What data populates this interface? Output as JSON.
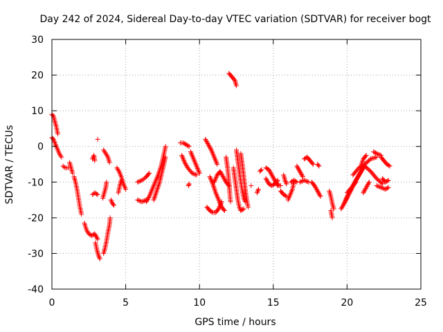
{
  "chart_data": {
    "type": "scatter",
    "title": "Day 242 of 2024, Sidereal Day-to-day VTEC variation (SDTVAR) for receiver bogt",
    "xlabel": "GPS time / hours",
    "ylabel": "SDTVAR / TECUs",
    "xlim": [
      0,
      25
    ],
    "ylim": [
      -40,
      30
    ],
    "xticks": [
      0,
      5,
      10,
      15,
      20,
      25
    ],
    "yticks": [
      -40,
      -30,
      -20,
      -10,
      0,
      10,
      20,
      30
    ],
    "grid": true,
    "marker": "+",
    "color": "#ff0000",
    "segments": [
      {
        "points": [
          [
            0.0,
            9.0
          ],
          [
            0.1,
            8.5
          ],
          [
            0.2,
            7.0
          ],
          [
            0.3,
            5.5
          ],
          [
            0.4,
            3.5
          ]
        ]
      },
      {
        "points": [
          [
            0.0,
            2.5
          ],
          [
            0.1,
            2.0
          ],
          [
            0.2,
            1.0
          ],
          [
            0.35,
            -0.5
          ],
          [
            0.5,
            -2.0
          ],
          [
            0.65,
            -3.0
          ]
        ]
      },
      {
        "points": [
          [
            0.75,
            -5.5
          ],
          [
            0.9,
            -6.0
          ],
          [
            1.1,
            -6.0
          ]
        ]
      },
      {
        "points": [
          [
            1.2,
            -4.5
          ],
          [
            1.3,
            -6.0
          ],
          [
            1.4,
            -7.5
          ]
        ]
      },
      {
        "points": [
          [
            1.5,
            -8.5
          ],
          [
            1.6,
            -10.0
          ],
          [
            1.7,
            -12.0
          ],
          [
            1.8,
            -14.5
          ],
          [
            1.9,
            -17.0
          ],
          [
            2.0,
            -19.0
          ]
        ]
      },
      {
        "points": [
          [
            2.2,
            -21.5
          ],
          [
            2.35,
            -23.5
          ],
          [
            2.5,
            -24.5
          ],
          [
            2.7,
            -25.0
          ],
          [
            2.9,
            -24.5
          ],
          [
            3.1,
            -26.0
          ]
        ]
      },
      {
        "points": [
          [
            2.75,
            -13.5
          ],
          [
            2.9,
            -13.0
          ],
          [
            3.1,
            -13.5
          ]
        ]
      },
      {
        "points": [
          [
            2.75,
            -3.5
          ],
          [
            2.85,
            -2.5
          ],
          [
            2.9,
            -4.0
          ]
        ]
      },
      {
        "points": [
          [
            3.1,
            2.0
          ]
        ]
      },
      {
        "points": [
          [
            2.95,
            -27.0
          ],
          [
            3.05,
            -29.0
          ],
          [
            3.15,
            -30.5
          ],
          [
            3.25,
            -31.5
          ]
        ]
      },
      {
        "points": [
          [
            3.5,
            -30.0
          ],
          [
            3.6,
            -28.5
          ],
          [
            3.7,
            -26.5
          ],
          [
            3.8,
            -24.0
          ],
          [
            3.9,
            -22.0
          ],
          [
            3.95,
            -20.0
          ]
        ]
      },
      {
        "points": [
          [
            3.5,
            -1.0
          ],
          [
            3.65,
            -2.0
          ],
          [
            3.8,
            -3.0
          ],
          [
            3.9,
            -4.5
          ]
        ]
      },
      {
        "points": [
          [
            3.45,
            -14.5
          ],
          [
            3.55,
            -13.0
          ],
          [
            3.65,
            -11.5
          ],
          [
            3.7,
            -10.0
          ]
        ]
      },
      {
        "points": [
          [
            4.0,
            -15.0
          ],
          [
            4.1,
            -16.0
          ],
          [
            4.2,
            -16.5
          ]
        ]
      },
      {
        "points": [
          [
            4.4,
            -6.0
          ],
          [
            4.55,
            -7.0
          ],
          [
            4.7,
            -8.5
          ],
          [
            4.85,
            -10.5
          ],
          [
            5.0,
            -12.0
          ]
        ]
      },
      {
        "points": [
          [
            4.5,
            -13.0
          ],
          [
            4.6,
            -11.0
          ],
          [
            4.7,
            -9.5
          ]
        ]
      },
      {
        "points": [
          [
            5.8,
            -10.0
          ],
          [
            6.1,
            -9.5
          ],
          [
            6.4,
            -8.5
          ],
          [
            6.6,
            -7.5
          ]
        ]
      },
      {
        "points": [
          [
            5.8,
            -15.0
          ],
          [
            6.1,
            -15.5
          ],
          [
            6.4,
            -15.0
          ]
        ]
      },
      {
        "points": [
          [
            6.4,
            -15.5
          ],
          [
            6.6,
            -14.0
          ],
          [
            6.8,
            -12.0
          ],
          [
            7.0,
            -10.0
          ],
          [
            7.2,
            -8.0
          ],
          [
            7.4,
            -5.5
          ],
          [
            7.6,
            -2.0
          ],
          [
            7.7,
            0.0
          ]
        ]
      },
      {
        "points": [
          [
            6.9,
            -15.0
          ],
          [
            7.1,
            -12.5
          ],
          [
            7.3,
            -10.0
          ],
          [
            7.5,
            -6.5
          ],
          [
            7.7,
            -3.0
          ]
        ]
      },
      {
        "points": [
          [
            8.7,
            1.0
          ],
          [
            8.9,
            1.0
          ],
          [
            9.1,
            0.5
          ],
          [
            9.3,
            0.0
          ]
        ]
      },
      {
        "points": [
          [
            8.8,
            -2.5
          ],
          [
            9.0,
            -4.5
          ],
          [
            9.2,
            -6.0
          ],
          [
            9.5,
            -7.5
          ],
          [
            9.8,
            -8.0
          ]
        ]
      },
      {
        "points": [
          [
            9.4,
            -1.5
          ],
          [
            9.6,
            -3.5
          ],
          [
            9.8,
            -5.5
          ],
          [
            10.0,
            -7.5
          ]
        ]
      },
      {
        "points": [
          [
            9.25,
            -11.0
          ],
          [
            9.3,
            -10.5
          ]
        ]
      },
      {
        "points": [
          [
            10.4,
            2.0
          ],
          [
            10.6,
            0.5
          ],
          [
            10.8,
            -1.0
          ],
          [
            11.0,
            -3.0
          ],
          [
            11.2,
            -5.0
          ]
        ]
      },
      {
        "points": [
          [
            10.5,
            -17.0
          ],
          [
            10.7,
            -18.0
          ],
          [
            10.9,
            -18.5
          ],
          [
            11.1,
            -18.5
          ],
          [
            11.3,
            -17.5
          ],
          [
            11.5,
            -15.5
          ]
        ]
      },
      {
        "points": [
          [
            10.7,
            -8.5
          ],
          [
            10.9,
            -10.5
          ],
          [
            11.1,
            -13.0
          ],
          [
            11.3,
            -15.0
          ],
          [
            11.5,
            -17.0
          ],
          [
            11.7,
            -18.0
          ]
        ]
      },
      {
        "points": [
          [
            11.0,
            -10.0
          ],
          [
            11.2,
            -8.0
          ],
          [
            11.4,
            -7.0
          ],
          [
            11.6,
            -8.5
          ],
          [
            11.8,
            -10.0
          ],
          [
            12.0,
            -11.0
          ]
        ]
      },
      {
        "points": [
          [
            11.8,
            -3.0
          ],
          [
            11.9,
            -6.0
          ],
          [
            12.0,
            -10.0
          ],
          [
            12.05,
            -13.0
          ],
          [
            12.1,
            -15.5
          ]
        ]
      },
      {
        "points": [
          [
            12.0,
            20.5
          ],
          [
            12.2,
            19.5
          ],
          [
            12.4,
            18.5
          ],
          [
            12.5,
            17.0
          ]
        ]
      },
      {
        "points": [
          [
            12.3,
            -6.0
          ],
          [
            12.4,
            -9.0
          ],
          [
            12.5,
            -12.0
          ],
          [
            12.6,
            -15.0
          ],
          [
            12.7,
            -17.0
          ],
          [
            12.8,
            -18.0
          ],
          [
            13.0,
            -17.5
          ]
        ]
      },
      {
        "points": [
          [
            12.5,
            -1.0
          ],
          [
            12.6,
            -4.0
          ],
          [
            12.7,
            -7.0
          ],
          [
            12.8,
            -10.0
          ],
          [
            12.9,
            -12.5
          ],
          [
            13.0,
            -14.5
          ],
          [
            13.1,
            -15.5
          ]
        ]
      },
      {
        "points": [
          [
            12.8,
            -2.0
          ],
          [
            12.9,
            -5.0
          ],
          [
            13.0,
            -8.5
          ],
          [
            13.1,
            -12.0
          ],
          [
            13.2,
            -15.0
          ],
          [
            13.3,
            -17.0
          ]
        ]
      },
      {
        "points": [
          [
            13.5,
            -11.0
          ]
        ]
      },
      {
        "points": [
          [
            13.9,
            -13.0
          ],
          [
            14.0,
            -12.0
          ]
        ]
      },
      {
        "points": [
          [
            14.1,
            -7.0
          ],
          [
            14.2,
            -6.5
          ]
        ]
      },
      {
        "points": [
          [
            14.5,
            -6.0
          ],
          [
            14.7,
            -6.5
          ],
          [
            14.9,
            -8.0
          ],
          [
            15.1,
            -9.5
          ],
          [
            15.3,
            -11.0
          ]
        ]
      },
      {
        "points": [
          [
            14.5,
            -9.0
          ],
          [
            14.7,
            -10.5
          ],
          [
            14.9,
            -11.0
          ],
          [
            15.1,
            -10.5
          ],
          [
            15.3,
            -9.5
          ]
        ]
      },
      {
        "points": [
          [
            15.3,
            -10.5
          ],
          [
            15.4,
            -11.0
          ],
          [
            15.5,
            -11.0
          ]
        ]
      },
      {
        "points": [
          [
            15.5,
            -12.5
          ],
          [
            15.7,
            -13.5
          ],
          [
            15.9,
            -14.0
          ]
        ]
      },
      {
        "points": [
          [
            15.7,
            -8.0
          ],
          [
            15.8,
            -9.5
          ],
          [
            15.9,
            -10.5
          ]
        ]
      },
      {
        "points": [
          [
            16.0,
            -15.0
          ],
          [
            16.15,
            -13.5
          ],
          [
            16.3,
            -12.0
          ],
          [
            16.4,
            -10.0
          ]
        ]
      },
      {
        "points": [
          [
            16.2,
            -10.0
          ],
          [
            16.4,
            -9.5
          ],
          [
            16.6,
            -10.0
          ]
        ]
      },
      {
        "points": [
          [
            16.6,
            -5.5
          ],
          [
            16.8,
            -7.0
          ],
          [
            17.0,
            -8.5
          ]
        ]
      },
      {
        "points": [
          [
            16.8,
            -10.0
          ],
          [
            17.1,
            -9.5
          ],
          [
            17.4,
            -10.0
          ]
        ]
      },
      {
        "points": [
          [
            17.1,
            -3.5
          ],
          [
            17.3,
            -3.0
          ],
          [
            17.5,
            -4.0
          ],
          [
            17.7,
            -5.0
          ]
        ]
      },
      {
        "points": [
          [
            17.6,
            -10.0
          ],
          [
            17.8,
            -11.0
          ],
          [
            18.0,
            -12.5
          ],
          [
            18.2,
            -14.0
          ]
        ]
      },
      {
        "points": [
          [
            18.0,
            -5.0
          ],
          [
            18.1,
            -5.5
          ]
        ]
      },
      {
        "points": [
          [
            18.8,
            -12.5
          ],
          [
            18.9,
            -14.0
          ],
          [
            19.0,
            -16.0
          ],
          [
            19.1,
            -17.5
          ]
        ]
      },
      {
        "points": [
          [
            18.9,
            -18.0
          ],
          [
            19.0,
            -20.0
          ]
        ]
      },
      {
        "points": [
          [
            19.6,
            -17.5
          ],
          [
            19.8,
            -16.0
          ],
          [
            20.0,
            -14.0
          ],
          [
            20.2,
            -12.5
          ],
          [
            20.4,
            -11.0
          ],
          [
            20.6,
            -10.0
          ]
        ]
      },
      {
        "points": [
          [
            19.8,
            -16.0
          ],
          [
            20.0,
            -14.5
          ],
          [
            20.3,
            -12.0
          ],
          [
            20.6,
            -9.5
          ],
          [
            20.9,
            -7.5
          ],
          [
            21.2,
            -5.5
          ]
        ]
      },
      {
        "points": [
          [
            20.0,
            -13.0
          ],
          [
            20.4,
            -11.0
          ],
          [
            20.8,
            -8.0
          ],
          [
            21.2,
            -5.0
          ],
          [
            21.6,
            -3.5
          ],
          [
            22.0,
            -3.0
          ]
        ]
      },
      {
        "points": [
          [
            20.4,
            -8.0
          ],
          [
            20.8,
            -6.0
          ],
          [
            21.2,
            -5.5
          ],
          [
            21.6,
            -7.0
          ],
          [
            22.0,
            -9.0
          ],
          [
            22.4,
            -10.5
          ]
        ]
      },
      {
        "points": [
          [
            20.9,
            -6.0
          ],
          [
            21.1,
            -3.5
          ],
          [
            21.3,
            -2.5
          ]
        ]
      },
      {
        "points": [
          [
            21.1,
            -13.0
          ],
          [
            21.3,
            -11.5
          ],
          [
            21.5,
            -10.0
          ]
        ]
      },
      {
        "points": [
          [
            21.8,
            -1.5
          ],
          [
            22.0,
            -2.0
          ],
          [
            22.3,
            -2.5
          ]
        ]
      },
      {
        "points": [
          [
            22.3,
            -3.0
          ],
          [
            22.5,
            -4.0
          ],
          [
            22.7,
            -5.0
          ],
          [
            22.9,
            -5.5
          ]
        ]
      },
      {
        "points": [
          [
            22.0,
            -11.0
          ],
          [
            22.3,
            -11.5
          ],
          [
            22.6,
            -12.0
          ],
          [
            22.8,
            -11.5
          ]
        ]
      },
      {
        "points": [
          [
            22.4,
            -9.0
          ],
          [
            22.6,
            -10.0
          ],
          [
            22.8,
            -9.5
          ]
        ]
      }
    ]
  }
}
